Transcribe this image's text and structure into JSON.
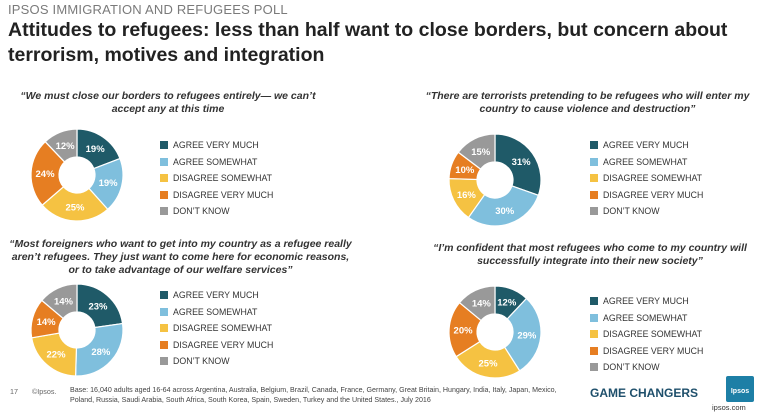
{
  "header": {
    "poll_label": "IPSOS IMMIGRATION AND REFUGEES POLL",
    "headline": "Attitudes to refugees: less than half want to close borders, but concern about terrorism, motives and integration"
  },
  "colors": {
    "agree_very_much": "#1f5a68",
    "agree_somewhat": "#7fbfdd",
    "disagree_somewhat": "#f5c242",
    "disagree_very_much": "#e67e22",
    "dont_know": "#999999"
  },
  "chart_data": [
    {
      "type": "pie",
      "title": "“We must close our borders to refugees entirely— we can’t accept any at this time",
      "categories": [
        "AGREE VERY MUCH",
        "AGREE SOMEWHAT",
        "DISAGREE SOMEWHAT",
        "DISAGREE VERY MUCH",
        "DON’T KNOW"
      ],
      "values": [
        19,
        19,
        25,
        24,
        12
      ],
      "labels": [
        "19%",
        "19%",
        "25%",
        "24%",
        "12%"
      ]
    },
    {
      "type": "pie",
      "title": "“There are terrorists pretending to be refugees who will enter my country to cause violence and destruction”",
      "categories": [
        "AGREE VERY MUCH",
        "AGREE SOMEWHAT",
        "DISAGREE SOMEWHAT",
        "DISAGREE VERY MUCH",
        "DON’T KNOW"
      ],
      "values": [
        31,
        30,
        16,
        10,
        15
      ],
      "labels": [
        "31%",
        "30%",
        "16%",
        "10%",
        "15%"
      ]
    },
    {
      "type": "pie",
      "title": "“Most foreigners who want to get into my country as a refugee really aren’t refugees. They just want to come here for economic reasons, or to take advantage of our welfare services”",
      "categories": [
        "AGREE VERY MUCH",
        "AGREE SOMEWHAT",
        "DISAGREE SOMEWHAT",
        "DISAGREE VERY MUCH",
        "DON’T KNOW"
      ],
      "values": [
        23,
        28,
        22,
        14,
        14
      ],
      "labels": [
        "23%",
        "28%",
        "22%",
        "14%",
        "14%"
      ]
    },
    {
      "type": "pie",
      "title": "“I’m confident that most refugees who come to my country will successfully integrate into their new society”",
      "categories": [
        "AGREE VERY MUCH",
        "AGREE SOMEWHAT",
        "DISAGREE SOMEWHAT",
        "DISAGREE VERY MUCH",
        "DON’T KNOW"
      ],
      "values": [
        12,
        29,
        25,
        20,
        14
      ],
      "labels": [
        "12%",
        "29%",
        "25%",
        "20%",
        "14%"
      ]
    }
  ],
  "footer": {
    "page_number": "17",
    "copyright": "©Ipsos.",
    "base_note": "Base: 16,040 adults aged 16-64 across Argentina, Australia, Belgium, Brazil, Canada, France, Germany, Great Britain, Hungary, India, Italy, Japan, Mexico, Poland, Russia, Saudi Arabia, South Africa, South Korea, Spain, Sweden, Turkey and the United States., July 2016",
    "game_changers": "GAME CHANGERS",
    "logo_text": "Ipsos",
    "site": "ipsos.com"
  }
}
